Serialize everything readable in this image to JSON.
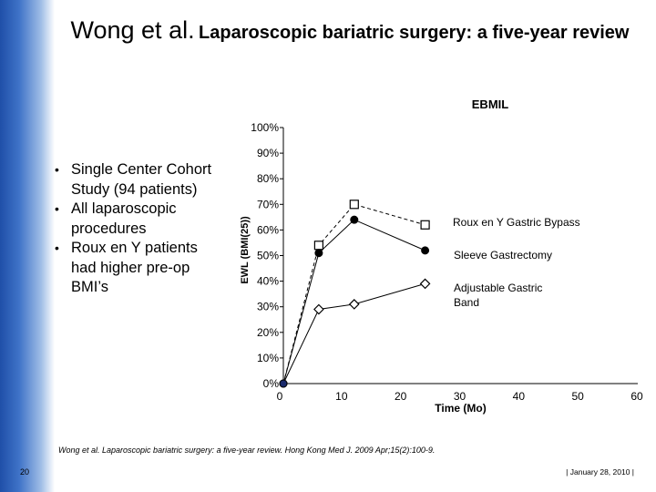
{
  "slide": {
    "title_author": "Wong et al.",
    "title_main": "Laparoscopic bariatric surgery: a five-year review",
    "bullets": [
      "Single Center Cohort Study (94 patients)",
      "All laparoscopic procedures",
      "Roux en Y patients had higher pre-op BMI’s"
    ],
    "citation": "Wong et al. Laparoscopic bariatric surgery: a five-year review. Hong Kong Med J. 2009 Apr;15(2):100-9.",
    "page_number": "20",
    "date": "|  January 28, 2010  |"
  },
  "chart_data": {
    "type": "line",
    "title": "EBMIL",
    "xlabel": "Time (Mo)",
    "ylabel": "EWL (BMI(25))",
    "xlim": [
      0,
      60
    ],
    "ylim": [
      0,
      100
    ],
    "x_ticks": [
      "0",
      "10",
      "20",
      "30",
      "40",
      "50",
      "60"
    ],
    "y_ticks": [
      "0%",
      "10%",
      "20%",
      "30%",
      "40%",
      "50%",
      "60%",
      "70%",
      "80%",
      "90%",
      "100%"
    ],
    "series": [
      {
        "name": "Roux en Y Gastric Bypass",
        "marker": "square",
        "line": "dashed",
        "x": [
          0,
          6,
          12,
          24
        ],
        "y": [
          0,
          54,
          70,
          62
        ]
      },
      {
        "name": "Sleeve Gastrectomy",
        "marker": "circle",
        "line": "solid",
        "x": [
          0,
          6,
          12,
          24
        ],
        "y": [
          0,
          51,
          64,
          52
        ]
      },
      {
        "name": "Adjustable Gastric Band",
        "marker": "diamond",
        "line": "solid",
        "x": [
          0,
          6,
          12,
          24
        ],
        "y": [
          0,
          29,
          31,
          39
        ]
      }
    ],
    "labels": [
      "Roux en Y Gastric Bypass",
      "Sleeve Gastrectomy",
      "Adjustable Gastric",
      "Band"
    ]
  }
}
